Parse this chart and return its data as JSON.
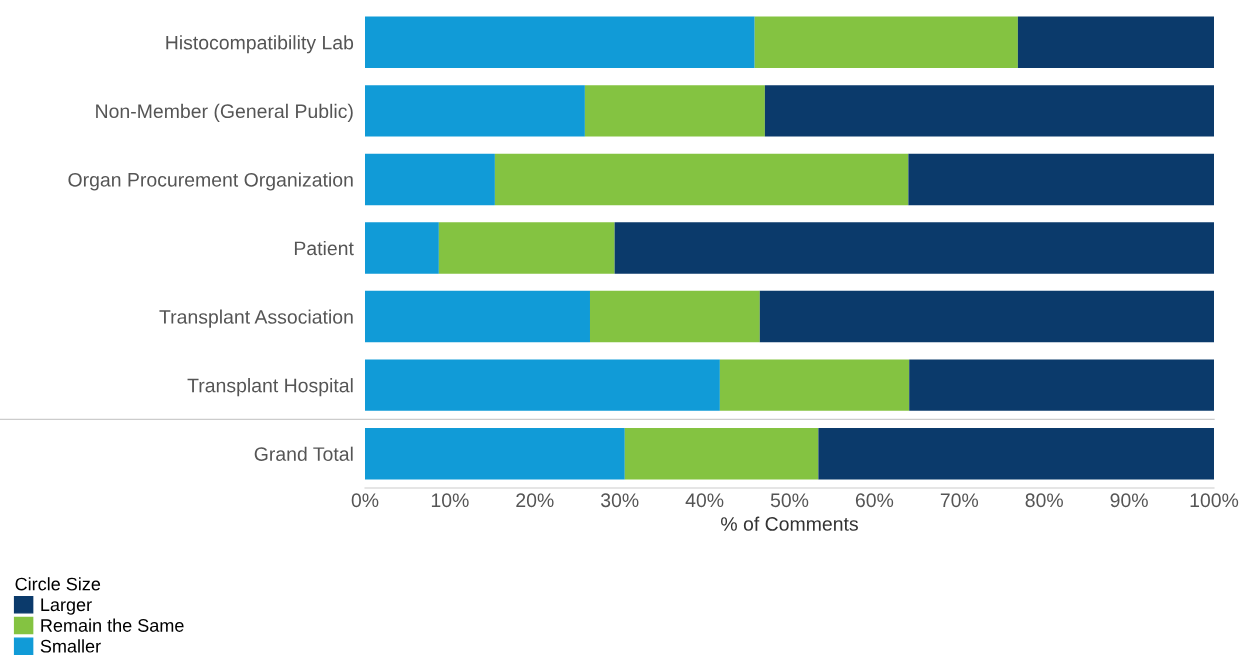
{
  "chart_data": {
    "type": "bar",
    "orientation": "horizontal",
    "stacked": true,
    "categories": [
      "Histocompatibility Lab",
      "Non-Member (General Public)",
      "Organ Procurement Organization",
      "Patient",
      "Transplant Association",
      "Transplant Hospital",
      "Grand Total"
    ],
    "series": [
      {
        "name": "Smaller",
        "color": "#119bd7",
        "values": [
          45.9,
          25.9,
          15.3,
          8.7,
          26.5,
          41.8,
          30.6
        ]
      },
      {
        "name": "Remain the Same",
        "color": "#84c341",
        "values": [
          31.0,
          21.2,
          48.7,
          20.7,
          20.0,
          22.3,
          22.8
        ]
      },
      {
        "name": "Larger",
        "color": "#0b3a6b",
        "values": [
          23.1,
          52.9,
          36.0,
          70.6,
          53.5,
          35.9,
          46.6
        ]
      }
    ],
    "xlabel": "% of Comments",
    "legend_title": "Circle Size",
    "legend": "bottom left",
    "xlim": [
      0,
      100
    ],
    "xticks": [
      {
        "value": 0,
        "label": "0%"
      },
      {
        "value": 10,
        "label": "10%"
      },
      {
        "value": 20,
        "label": "20%"
      },
      {
        "value": 30,
        "label": "30%"
      },
      {
        "value": 40,
        "label": "40%"
      },
      {
        "value": 50,
        "label": "50%"
      },
      {
        "value": 60,
        "label": "60%"
      },
      {
        "value": 70,
        "label": "70%"
      },
      {
        "value": 80,
        "label": "80%"
      },
      {
        "value": 90,
        "label": "90%"
      },
      {
        "value": 100,
        "label": "100%"
      }
    ],
    "grid": false
  }
}
